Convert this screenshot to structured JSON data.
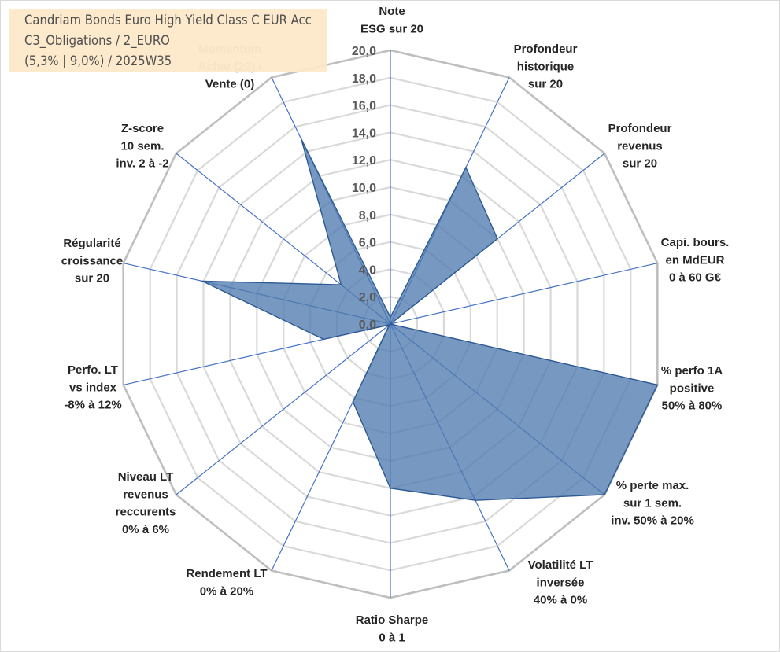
{
  "title": {
    "lines": [
      "Candriam Bonds Euro High Yield Class C EUR Acc",
      "C3_Obligations / 2_EURO",
      "(5,3% | 9,0%) / 2025W35"
    ]
  },
  "colors": {
    "fill": "#4f7bb0",
    "stroke": "#2e5a94",
    "spoke": "#4472c4",
    "outer_ring": "#bfbfbf",
    "grid": "#d9d9d9",
    "title_bg": "#fde9c9"
  },
  "chart_data": {
    "type": "radar",
    "title": "Candriam Bonds Euro High Yield Class C EUR Acc",
    "rlim": [
      0,
      20
    ],
    "ticks": [
      "0,0",
      "2,0",
      "4,0",
      "6,0",
      "8,0",
      "10,0",
      "12,0",
      "14,0",
      "16,0",
      "18,0",
      "20,0"
    ],
    "axes": [
      {
        "lines": [
          "Note",
          "ESG sur 20"
        ],
        "value": 0.5
      },
      {
        "lines": [
          "Profondeur",
          "historique",
          "sur 20"
        ],
        "value": 12.7
      },
      {
        "lines": [
          "Profondeur",
          "revenus",
          "sur 20"
        ],
        "value": 10.0
      },
      {
        "lines": [
          "Capi. bours.",
          "en MdEUR",
          "0 à 60 G€"
        ],
        "value": 0.0
      },
      {
        "lines": [
          "% perfo 1A",
          "positive",
          "50% à 80%"
        ],
        "value": 20.0
      },
      {
        "lines": [
          "% perte max.",
          "sur 1 sem.",
          "inv. 50% à 20%"
        ],
        "value": 20.0
      },
      {
        "lines": [
          "Volatilité LT",
          "inversée",
          "40% à 0%"
        ],
        "value": 14.3
      },
      {
        "lines": [
          "Ratio Sharpe",
          "0 à 1"
        ],
        "value": 12.0
      },
      {
        "lines": [
          "Rendement LT",
          "0% à 20%"
        ],
        "value": 6.3
      },
      {
        "lines": [
          "Niveau LT",
          "revenus",
          "reccurents",
          "0% à 6%"
        ],
        "value": 0.1
      },
      {
        "lines": [
          "Perfo. LT",
          "vs index",
          "-8% à 12%"
        ],
        "value": 5.0
      },
      {
        "lines": [
          "Régularité",
          "croissance",
          "sur 20"
        ],
        "value": 14.1
      },
      {
        "lines": [
          "Z-score",
          "10 sem.",
          "inv. 2 à -2"
        ],
        "value": 4.6
      },
      {
        "lines": [
          "Momentum",
          "Achat (20) /",
          "Vente (0)"
        ],
        "muted_lines": 2,
        "value": 15.0
      }
    ]
  }
}
